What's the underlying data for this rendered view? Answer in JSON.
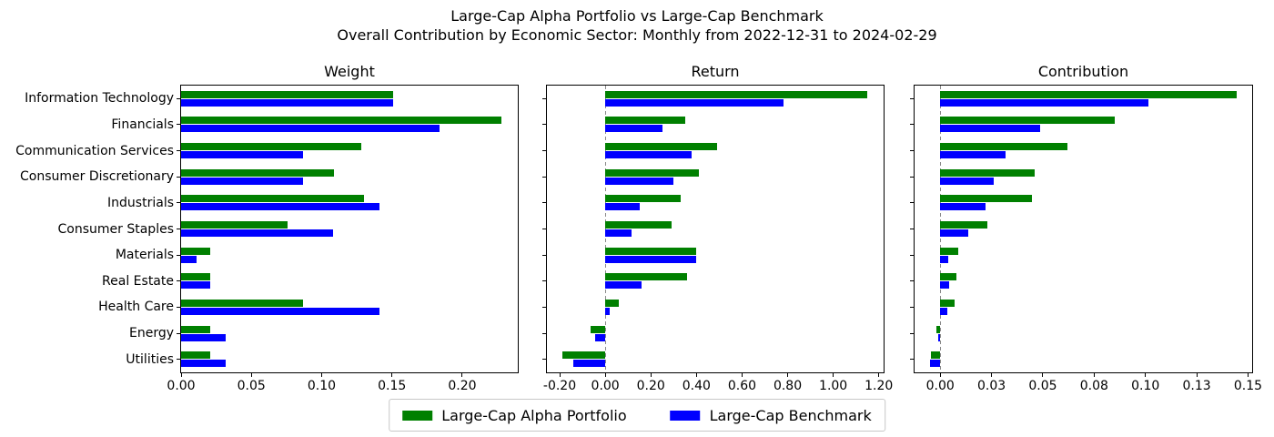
{
  "header": {
    "title_line1": "Large-Cap Alpha Portfolio vs Large-Cap Benchmark",
    "title_line2": "Overall Contribution by Economic Sector: Monthly from 2022-12-31 to 2024-02-29"
  },
  "chart_data": {
    "type": "bar",
    "orientation": "horizontal",
    "grid": false,
    "sectors": [
      "Information Technology",
      "Financials",
      "Communication Services",
      "Consumer Discretionary",
      "Industrials",
      "Consumer Staples",
      "Materials",
      "Real Estate",
      "Health Care",
      "Energy",
      "Utilities"
    ],
    "panels": [
      {
        "title": "Weight",
        "xlim": [
          0,
          0.2395
        ],
        "xticks": [
          0,
          0.05,
          0.1,
          0.15,
          0.2
        ],
        "xtick_labels": [
          "0.00",
          "0.05",
          "0.10",
          "0.15",
          "0.20"
        ],
        "zero_line": false,
        "series": [
          {
            "name": "Large-Cap Alpha Portfolio",
            "color": "#008000",
            "values": [
              0.151,
              0.228,
              0.128,
              0.109,
              0.13,
              0.076,
              0.021,
              0.021,
              0.087,
              0.021,
              0.021
            ]
          },
          {
            "name": "Large-Cap Benchmark",
            "color": "#0000ff",
            "values": [
              0.151,
              0.184,
              0.087,
              0.087,
              0.141,
              0.108,
              0.011,
              0.021,
              0.141,
              0.032,
              0.032
            ]
          }
        ]
      },
      {
        "title": "Return",
        "xlim": [
          -0.256,
          1.221
        ],
        "xticks": [
          -0.2,
          0.0,
          0.2,
          0.4,
          0.6,
          0.8,
          1.0,
          1.2
        ],
        "xtick_labels": [
          "-0.20",
          "0.00",
          "0.20",
          "0.40",
          "0.60",
          "0.80",
          "1.00",
          "1.20"
        ],
        "zero_line": true,
        "series": [
          {
            "name": "Large-Cap Alpha Portfolio",
            "color": "#008000",
            "values": [
              1.15,
              0.35,
              0.49,
              0.41,
              0.33,
              0.29,
              0.4,
              0.36,
              0.06,
              -0.065,
              -0.19
            ]
          },
          {
            "name": "Large-Cap Benchmark",
            "color": "#0000ff",
            "values": [
              0.78,
              0.25,
              0.38,
              0.3,
              0.15,
              0.115,
              0.4,
              0.16,
              0.02,
              -0.045,
              -0.14
            ]
          }
        ]
      },
      {
        "title": "Contribution",
        "xlim": [
          -0.0125,
          0.152
        ],
        "xticks": [
          0.0,
          0.025,
          0.05,
          0.075,
          0.1,
          0.125,
          0.15
        ],
        "xtick_labels": [
          "0.00",
          "0.03",
          "0.05",
          "0.08",
          "0.10",
          "0.13",
          "0.15"
        ],
        "zero_line": true,
        "series": [
          {
            "name": "Large-Cap Alpha Portfolio",
            "color": "#008000",
            "values": [
              0.1445,
              0.085,
              0.062,
              0.046,
              0.0445,
              0.023,
              0.009,
              0.008,
              0.007,
              -0.002,
              -0.0045
            ]
          },
          {
            "name": "Large-Cap Benchmark",
            "color": "#0000ff",
            "values": [
              0.1015,
              0.0485,
              0.032,
              0.026,
              0.022,
              0.0135,
              0.004,
              0.0045,
              0.0035,
              -0.001,
              -0.005
            ]
          }
        ]
      }
    ],
    "legend": {
      "position": "lower center",
      "entries": [
        {
          "label": "Large-Cap Alpha Portfolio",
          "color": "#008000"
        },
        {
          "label": "Large-Cap Benchmark",
          "color": "#0000ff"
        }
      ]
    }
  }
}
